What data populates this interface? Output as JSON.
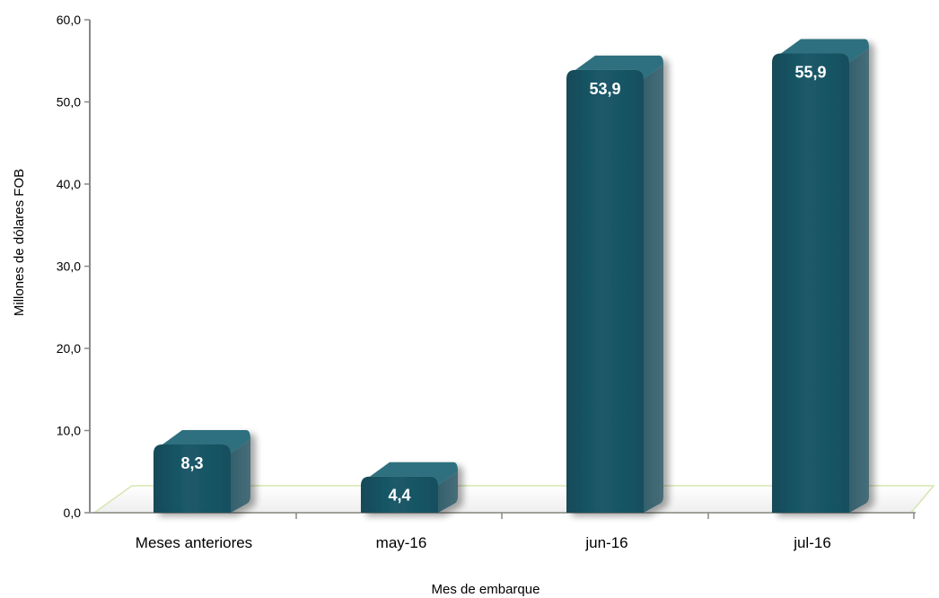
{
  "chart_data": {
    "type": "bar",
    "categories": [
      "Meses anteriores",
      "may-16",
      "jun-16",
      "jul-16"
    ],
    "values": [
      8.3,
      4.4,
      53.9,
      55.9
    ],
    "data_labels": [
      "8,3",
      "4,4",
      "53,9",
      "55,9"
    ],
    "xlabel": "Mes de embarque",
    "ylabel": "Millones de dólares FOB",
    "ylim": [
      0,
      60
    ],
    "y_ticks": [
      0,
      10,
      20,
      30,
      40,
      50,
      60
    ],
    "y_tick_labels": [
      "0,0",
      "10,0",
      "20,0",
      "30,0",
      "40,0",
      "50,0",
      "60,0"
    ],
    "grid": false,
    "style": "3d-column",
    "colors": {
      "bar_front": "#1b5a6a",
      "bar_top": "#2f6f7f",
      "bar_side": "#3c6470",
      "floor": "#f6f6f6",
      "floor_edge": "#d6e6b0",
      "axis": "#888888"
    }
  }
}
